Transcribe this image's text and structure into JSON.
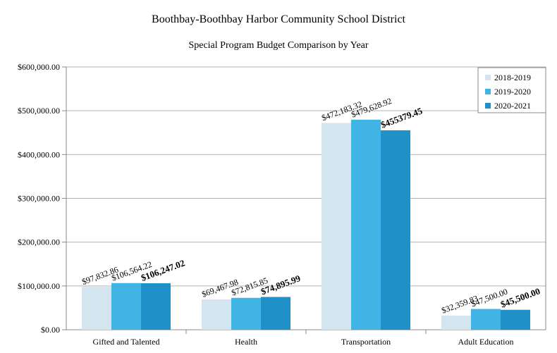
{
  "chart_data": {
    "type": "bar",
    "title": "Boothbay-Boothbay Harbor Community School District",
    "subtitle": "Special Program Budget Comparison by Year",
    "xlabel": "",
    "ylabel": "",
    "categories": [
      "Gifted and Talented",
      "Health",
      "Transportation",
      "Adult Education"
    ],
    "series": [
      {
        "name": "2018-2019",
        "color": "#d3e6ef",
        "values": [
          97832.86,
          69467.98,
          472183.32,
          32359.83
        ],
        "labels": [
          "$97,832.86",
          "$69,467.98",
          "$472,183.32",
          "$32,359.83"
        ]
      },
      {
        "name": "2019-2020",
        "color": "#40b4e4",
        "values": [
          106564.22,
          72815.85,
          479628.92,
          47500.0
        ],
        "labels": [
          "$106,564.22",
          "$72,815.85",
          "$479,628.92",
          "$47,500.00"
        ]
      },
      {
        "name": "2020-2021",
        "color": "#2090c8",
        "values": [
          106247.02,
          74895.99,
          455379.45,
          45500.0
        ],
        "labels": [
          "$106,247.02",
          "$74,895.99",
          "$455379.45",
          "$45,500.00"
        ]
      }
    ],
    "ylim": [
      0,
      600000
    ],
    "yticks": [
      0,
      100000,
      200000,
      300000,
      400000,
      500000,
      600000
    ],
    "ytick_labels": [
      "$0.00",
      "$100,000.00",
      "$200,000.00",
      "$300,000.00",
      "$400,000.00",
      "$500,000.00",
      "$600,000.00"
    ],
    "grid": true,
    "legend_position": "top-right",
    "colors": {
      "grid": "#b3b3b3",
      "axis": "#888888",
      "frame": "#888888"
    }
  }
}
